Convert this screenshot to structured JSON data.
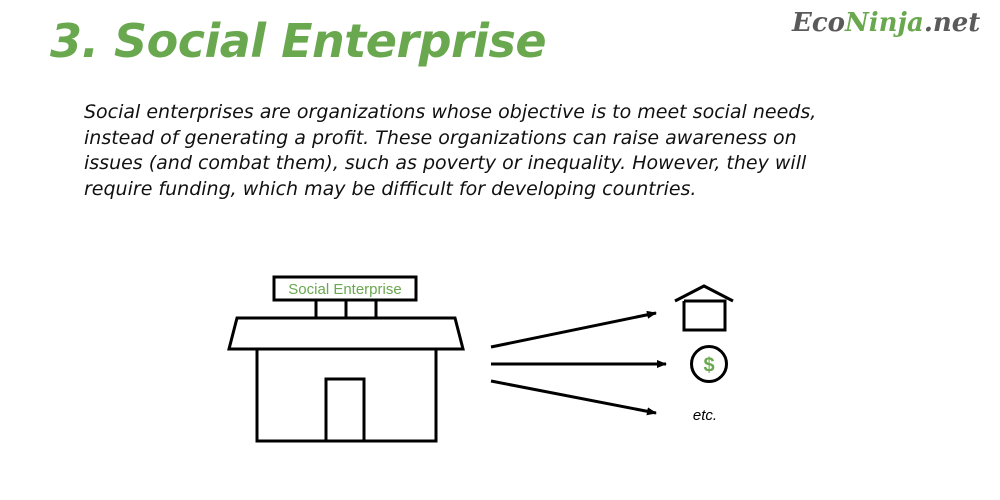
{
  "title": "3. Social Enterprise",
  "logo": {
    "part1": "Eco",
    "part2": "Ninja",
    "part3": ".net"
  },
  "description": "Social enterprises are organizations whose objective is to meet social needs, instead of generating a profit. These organizations can raise awareness on issues (and combat them), such as poverty or inequality. However, they will require funding, which may be difficult for developing countries.",
  "diagram": {
    "sign_label": "Social Enterprise",
    "outcomes": [
      {
        "icon": "house-icon"
      },
      {
        "icon": "dollar-icon",
        "symbol": "$"
      },
      {
        "label": "etc."
      }
    ]
  },
  "colors": {
    "accent": "#6aa84f",
    "logo_gray": "#5a5a5a",
    "stroke": "#000000"
  }
}
